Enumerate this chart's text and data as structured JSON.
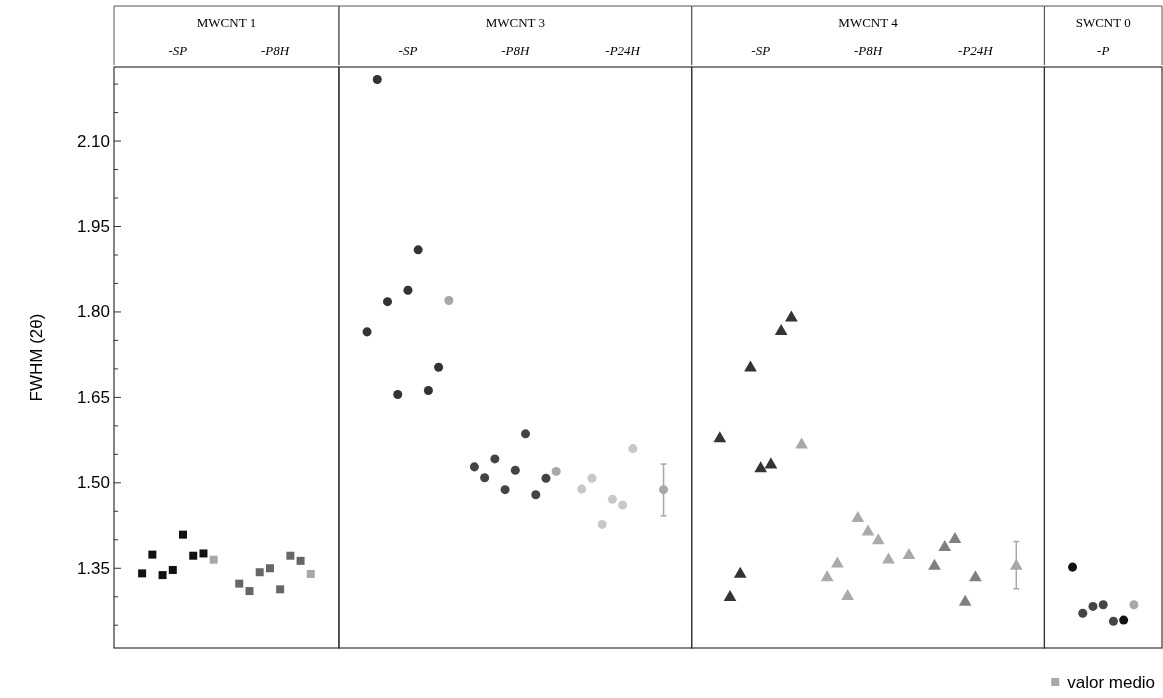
{
  "chart_data": [
    {
      "type": "scatter",
      "title": "MWCNT 1",
      "ylabel": "FWHM (2θ)",
      "ylim": [
        1.21,
        2.23
      ],
      "yticks": [
        {
          "value": 2.2,
          "label": null
        },
        {
          "value": 2.15,
          "label": null
        },
        {
          "value": 2.1,
          "label": "2.10"
        },
        {
          "value": 2.05,
          "label": null
        },
        {
          "value": 2.0,
          "label": null
        },
        {
          "value": 1.95,
          "label": "1.95"
        },
        {
          "value": 1.9,
          "label": null
        },
        {
          "value": 1.85,
          "label": null
        },
        {
          "value": 1.8,
          "label": "1.80"
        },
        {
          "value": 1.75,
          "label": null
        },
        {
          "value": 1.7,
          "label": null
        },
        {
          "value": 1.65,
          "label": "1.65"
        },
        {
          "value": 1.6,
          "label": null
        },
        {
          "value": 1.55,
          "label": null
        },
        {
          "value": 1.5,
          "label": "1.50"
        },
        {
          "value": 1.45,
          "label": null
        },
        {
          "value": 1.4,
          "label": null
        },
        {
          "value": 1.35,
          "label": "1.35"
        },
        {
          "value": 1.3,
          "label": null
        },
        {
          "value": 1.25,
          "label": null
        }
      ],
      "marker": "square",
      "categories": [
        "-SP",
        "-P8H"
      ],
      "series": [
        {
          "colors": [
            "#111111",
            "#666666"
          ],
          "values": [
            1.341,
            1.323
          ]
        },
        {
          "colors": [
            "#111111",
            "#666666"
          ],
          "values": [
            1.374,
            1.31
          ]
        },
        {
          "colors": [
            "#111111",
            "#666666"
          ],
          "values": [
            1.338,
            1.343
          ]
        },
        {
          "colors": [
            "#111111",
            "#666666"
          ],
          "values": [
            1.347,
            1.35
          ]
        },
        {
          "colors": [
            "#111111",
            "#666666"
          ],
          "values": [
            1.409,
            1.313
          ]
        },
        {
          "colors": [
            "#111111",
            "#666666"
          ],
          "values": [
            1.372,
            1.372
          ]
        },
        {
          "colors": [
            "#111111",
            "#666666"
          ],
          "values": [
            1.376,
            1.363
          ]
        },
        {
          "color": "#a8a8a8",
          "values": [
            1.365,
            1.34
          ]
        }
      ]
    },
    {
      "type": "scatter",
      "title": "MWCNT 3",
      "ylim": [
        1.21,
        2.23
      ],
      "tick_labels": "x",
      "marker": "circle",
      "categories": [
        "-SP",
        "-P8H",
        "-P24H"
      ],
      "series": [
        {
          "colors": [
            "#333333",
            "#444444",
            "#c8c8c8"
          ],
          "values": [
            1.765,
            1.528,
            1.489
          ]
        },
        {
          "colors": [
            "#333333",
            "#444444",
            "#c8c8c8"
          ],
          "values": [
            2.208,
            1.509,
            1.508
          ]
        },
        {
          "colors": [
            "#333333",
            "#444444",
            "#c8c8c8"
          ],
          "values": [
            1.818,
            1.542,
            1.427
          ]
        },
        {
          "colors": [
            "#333333",
            "#444444",
            "#c8c8c8"
          ],
          "values": [
            1.655,
            1.488,
            1.471
          ]
        },
        {
          "colors": [
            "#333333",
            "#444444",
            "#c8c8c8"
          ],
          "values": [
            1.838,
            1.522,
            1.461
          ]
        },
        {
          "colors": [
            "#333333",
            "#444444",
            "#c8c8c8"
          ],
          "values": [
            1.909,
            1.586,
            1.56
          ]
        },
        {
          "colors": [
            "#333333",
            "#444444",
            null
          ],
          "values": [
            1.662,
            1.479,
            null
          ]
        },
        {
          "colors": [
            "#333333",
            "#444444",
            null
          ],
          "values": [
            1.703,
            1.508,
            null
          ]
        },
        {
          "color": "#a8a8a8",
          "values": [
            1.82,
            1.52,
            1.488
          ],
          "errors": [
            null,
            null,
            [
              1.442,
              1.533
            ]
          ]
        }
      ]
    },
    {
      "type": "scatter",
      "title": "MWCNT 4",
      "ylim": [
        1.21,
        2.23
      ],
      "tick_labels": "x",
      "marker": "triangle",
      "categories": [
        "-SP",
        "-P8H",
        "-P24H"
      ],
      "series": [
        {
          "colors": [
            "#333333",
            "#aaaaaa",
            "#808080"
          ],
          "values": [
            1.581,
            1.337,
            1.357
          ]
        },
        {
          "colors": [
            "#333333",
            "#aaaaaa",
            "#808080"
          ],
          "values": [
            1.302,
            1.361,
            1.39
          ]
        },
        {
          "colors": [
            "#333333",
            "#aaaaaa",
            "#808080"
          ],
          "values": [
            1.343,
            1.304,
            1.404
          ]
        },
        {
          "colors": [
            "#333333",
            "#aaaaaa",
            "#808080"
          ],
          "values": [
            1.705,
            1.441,
            1.294
          ]
        },
        {
          "colors": [
            "#333333",
            "#aaaaaa",
            "#808080"
          ],
          "values": [
            1.528,
            1.417,
            1.337
          ]
        },
        {
          "colors": [
            "#333333",
            "#aaaaaa",
            null
          ],
          "values": [
            1.535,
            1.402,
            null
          ]
        },
        {
          "colors": [
            "#333333",
            "#aaaaaa",
            null
          ],
          "values": [
            1.769,
            1.368,
            null
          ]
        },
        {
          "colors": [
            "#333333",
            null,
            null
          ],
          "values": [
            1.793,
            null,
            null
          ]
        },
        {
          "color": "#a8a8a8",
          "values": [
            1.57,
            1.376,
            1.357
          ],
          "errors": [
            null,
            null,
            [
              1.314,
              1.397
            ]
          ]
        }
      ]
    },
    {
      "type": "scatter",
      "title": "SWCNT 0",
      "ylim": [
        1.21,
        2.23
      ],
      "tick_labels": "x",
      "marker": "circle",
      "legend": "bottom",
      "categories": [
        "-P"
      ],
      "series": [
        {
          "color": "#111111",
          "values": [
            1.352
          ]
        },
        {
          "color": "#444444",
          "values": [
            1.271
          ]
        },
        {
          "color": "#444444",
          "values": [
            1.283
          ]
        },
        {
          "color": "#444444",
          "values": [
            1.286
          ]
        },
        {
          "color": "#444444",
          "values": [
            1.257
          ]
        },
        {
          "color": "#111111",
          "values": [
            1.259
          ]
        },
        {
          "name": "valor medio",
          "color": "#a8a8a8",
          "values": [
            1.286
          ]
        }
      ]
    }
  ]
}
